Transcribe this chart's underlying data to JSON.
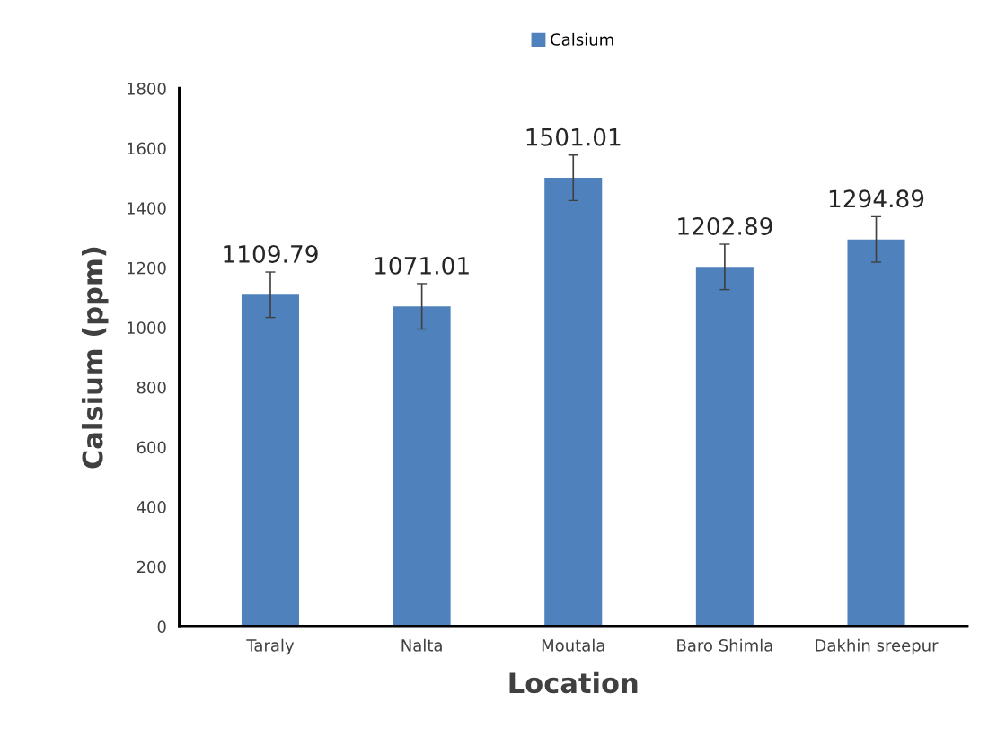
{
  "chart_data": {
    "type": "bar",
    "xlabel": "Location",
    "ylabel": "Calsium (ppm)",
    "categories": [
      "Taraly",
      "Nalta",
      "Moutala",
      "Baro Shimla",
      "Dakhin sreepur"
    ],
    "series": [
      {
        "name": "Calsium",
        "color": "#4f81bd",
        "values": [
          1109.79,
          1071.01,
          1501.01,
          1202.89,
          1294.89
        ],
        "errors": [
          76,
          76,
          76,
          76,
          76
        ]
      }
    ],
    "ylim": [
      0,
      1800
    ],
    "yticks": [
      0,
      200,
      400,
      600,
      800,
      1000,
      1200,
      1400,
      1600,
      1800
    ],
    "grid": false,
    "legend": "top",
    "data_labels": true
  }
}
